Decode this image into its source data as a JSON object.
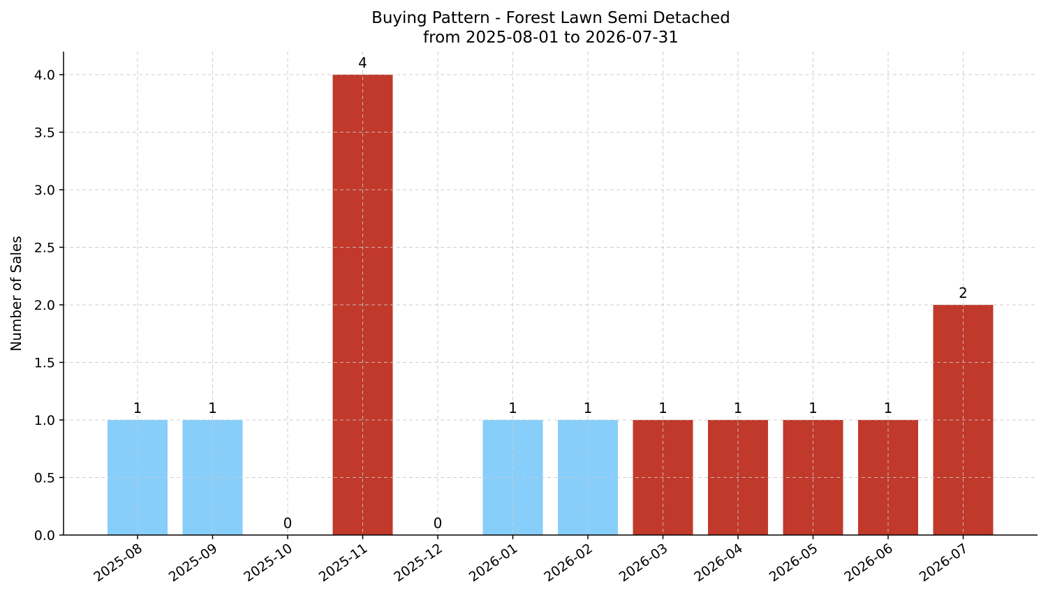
{
  "chart_data": {
    "type": "bar",
    "title": "Buying Pattern - Forest Lawn Semi Detached",
    "subtitle": "from 2025-08-01 to 2026-07-31",
    "xlabel": "",
    "ylabel": "Number of Sales",
    "categories": [
      "2025-08",
      "2025-09",
      "2025-10",
      "2025-11",
      "2025-12",
      "2026-01",
      "2026-02",
      "2026-03",
      "2026-04",
      "2026-05",
      "2026-06",
      "2026-07"
    ],
    "values": [
      1,
      1,
      0,
      4,
      0,
      1,
      1,
      1,
      1,
      1,
      1,
      2
    ],
    "value_labels": [
      "1",
      "1",
      "0",
      "4",
      "0",
      "1",
      "1",
      "1",
      "1",
      "1",
      "1",
      "2"
    ],
    "bar_colors": [
      "#87cefa",
      "#87cefa",
      "#87cefa",
      "#c0392b",
      "#87cefa",
      "#87cefa",
      "#87cefa",
      "#c0392b",
      "#c0392b",
      "#c0392b",
      "#c0392b",
      "#c0392b"
    ],
    "ylim": [
      0,
      4.2
    ],
    "yticks": [
      0.0,
      0.5,
      1.0,
      1.5,
      2.0,
      2.5,
      3.0,
      3.5,
      4.0
    ],
    "ytick_labels": [
      "0.0",
      "0.5",
      "1.0",
      "1.5",
      "2.0",
      "2.5",
      "3.0",
      "3.5",
      "4.0"
    ],
    "grid": true,
    "legend": "none"
  }
}
